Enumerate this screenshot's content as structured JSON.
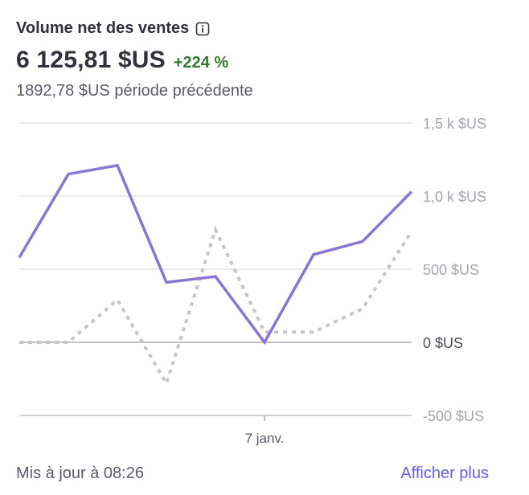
{
  "card": {
    "title": "Volume net des ventes",
    "value": "6 125,81 $US",
    "delta": "+224 %",
    "previous": "1892,78 $US période précédente",
    "updated": "Mis à jour à 08:26",
    "more_link": "Afficher plus"
  },
  "colors": {
    "current": "#8a74d6",
    "previous": "#c6c6c6",
    "delta_positive": "#2f7a2b",
    "link": "#635bff"
  },
  "icons": {
    "info": "info-icon"
  },
  "chart_data": {
    "type": "line",
    "x": [
      1,
      2,
      3,
      4,
      5,
      6,
      7,
      8,
      9
    ],
    "x_tick_labels": [
      {
        "x": 6,
        "label": "7 janv."
      }
    ],
    "y_tick_labels": [
      "1,5 k $US",
      "1,0 k $US",
      "500 $US",
      "0 $US",
      "-500 $US"
    ],
    "y_ticks": [
      1500,
      1000,
      500,
      0,
      -500
    ],
    "ylim": [
      -500,
      1500
    ],
    "y_axis_side": "right",
    "grid": true,
    "series": [
      {
        "key": "current",
        "style": "solid",
        "values": [
          580,
          1150,
          1210,
          410,
          450,
          0,
          600,
          690,
          1030
        ]
      },
      {
        "key": "previous",
        "style": "dotted",
        "values": [
          0,
          0,
          290,
          -280,
          770,
          70,
          70,
          230,
          760
        ]
      }
    ]
  }
}
